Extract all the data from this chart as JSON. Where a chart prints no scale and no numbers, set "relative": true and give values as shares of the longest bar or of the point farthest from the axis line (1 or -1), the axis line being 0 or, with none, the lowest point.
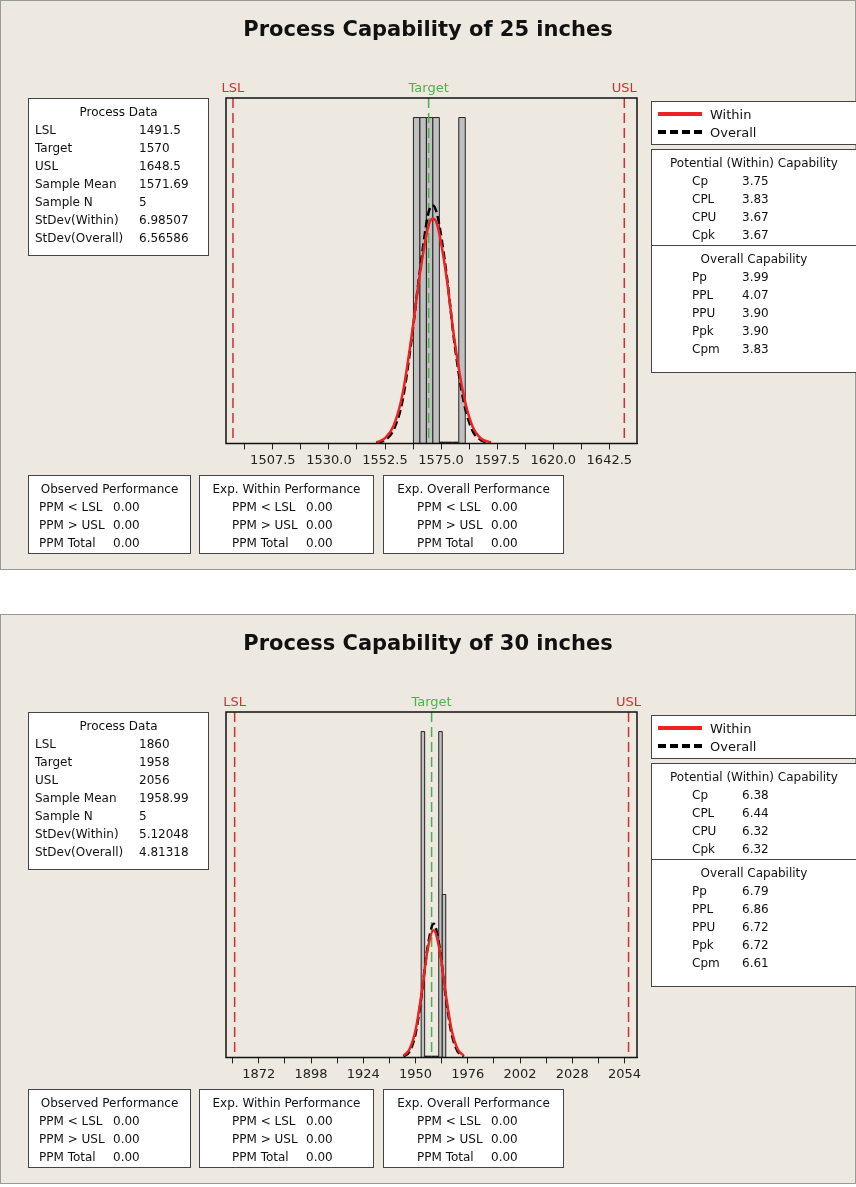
{
  "chart_data": [
    {
      "type": "histogram",
      "title": "Process Capability of 25 inches",
      "relative": true,
      "tick_labels": "x",
      "legend": "right",
      "color": "#c0c0c0",
      "bins": [
        1563.9,
        1566.5,
        1569.1,
        1571.7,
        1574.3,
        1576.9,
        1579.5,
        1582.1,
        1584.7
      ],
      "values": [
        1,
        1,
        1,
        1,
        0,
        0,
        0,
        1
      ],
      "xlim": [
        1488.7,
        1653.6
      ],
      "xticks": [
        {
          "value": 1496.25,
          "label": null
        },
        1507.5,
        {
          "value": 1518.75,
          "label": null
        },
        {
          "value": 1530,
          "label": "1530.0"
        },
        {
          "value": 1541.25,
          "label": null
        },
        1552.5,
        {
          "value": 1563.75,
          "label": null
        },
        {
          "value": 1575,
          "label": "1575.0"
        },
        {
          "value": 1586.25,
          "label": null
        },
        1597.5,
        {
          "value": 1608.75,
          "label": null
        },
        {
          "value": 1620,
          "label": "1620.0"
        },
        {
          "value": 1631.25,
          "label": null
        },
        1642.5
      ],
      "series": [
        {
          "name": "Within",
          "type": "line",
          "color": "#ee2222",
          "line_style": "solid",
          "x": [
            1549,
            1552.5,
            1556,
            1559.5,
            1563,
            1566.5,
            1570,
            1571.7,
            1573.5,
            1577,
            1580.5,
            1584,
            1587.5,
            1591,
            1595
          ],
          "values": [
            0.003,
            0.016,
            0.055,
            0.15,
            0.32,
            0.52,
            0.67,
            0.69,
            0.67,
            0.52,
            0.31,
            0.15,
            0.054,
            0.015,
            0.003
          ]
        },
        {
          "name": "Overall",
          "type": "line",
          "color": "#000000",
          "line_style": "dashed",
          "x": [
            1549,
            1552.5,
            1556,
            1559.5,
            1563,
            1566.5,
            1570,
            1571.7,
            1573.5,
            1577,
            1580.5,
            1584,
            1587.5,
            1591,
            1595
          ],
          "values": [
            0.002,
            0.01,
            0.042,
            0.13,
            0.31,
            0.53,
            0.71,
            0.73,
            0.7,
            0.53,
            0.3,
            0.13,
            0.04,
            0.01,
            0.001
          ]
        }
      ],
      "ref_lines": [
        {
          "axis": "x",
          "value": 1491.5,
          "label": "LSL",
          "color": "#d03030",
          "line_style": "dashed"
        },
        {
          "axis": "x",
          "value": 1570,
          "label": "Target",
          "color": "#4caf50",
          "line_style": "dashed"
        },
        {
          "axis": "x",
          "value": 1648.5,
          "label": "USL",
          "color": "#d03030",
          "line_style": "dashed"
        }
      ],
      "annotations": [
        "Process Data\nLSL\t1491.5\nTarget\t1570\nUSL\t1648.5\nSample Mean\t1571.69\nSample N\t5\nStDev(Within)\t6.98507\nStDev(Overall)\t6.56586",
        "Potential (Within) Capability\nCp\t3.75\nCPL\t3.83\nCPU\t3.67\nCpk\t3.67",
        "Overall Capability\nPp\t3.99\nPPL\t4.07\nPPU\t3.90\nPpk\t3.90\nCpm\t3.83",
        "Observed Performance\nPPM < LSL\t0.00\nPPM > USL\t0.00\nPPM Total\t0.00",
        "Exp. Within Performance\nPPM < LSL\t0.00\nPPM > USL\t0.00\nPPM Total\t0.00",
        "Exp. Overall Performance\nPPM < LSL\t0.00\nPPM > USL\t0.00\nPPM Total\t0.00"
      ]
    },
    {
      "type": "histogram",
      "title": "Process Capability of 30 inches",
      "relative": true,
      "tick_labels": "x",
      "legend": "right",
      "color": "#c0c0c0",
      "bins": [
        1952.8,
        1954.55,
        1956.3,
        1958.05,
        1959.8,
        1961.55,
        1963.3,
        1965.05
      ],
      "values": [
        1,
        0,
        0,
        0,
        0,
        1,
        0.5
      ],
      "xlim": [
        1855.7,
        2060.2
      ],
      "xticks": [
        {
          "value": 1859,
          "label": null
        },
        1872,
        {
          "value": 1885,
          "label": null
        },
        1898,
        {
          "value": 1911,
          "label": null
        },
        1924,
        {
          "value": 1937,
          "label": null
        },
        1950,
        {
          "value": 1963,
          "label": null
        },
        1976,
        {
          "value": 1989,
          "label": null
        },
        2002,
        {
          "value": 2015,
          "label": null
        },
        2028,
        {
          "value": 2041,
          "label": null
        },
        2054
      ],
      "series": [
        {
          "name": "Within",
          "type": "line",
          "color": "#ee2222",
          "line_style": "solid",
          "x": [
            1944,
            1947,
            1950,
            1953,
            1956,
            1959,
            1962,
            1965,
            1968,
            1971,
            1974
          ],
          "values": [
            0.005,
            0.025,
            0.083,
            0.196,
            0.33,
            0.39,
            0.328,
            0.196,
            0.083,
            0.025,
            0.005
          ]
        },
        {
          "name": "Overall",
          "type": "line",
          "color": "#000000",
          "line_style": "dashed",
          "x": [
            1944,
            1947,
            1950,
            1953,
            1956,
            1959,
            1962,
            1965,
            1968,
            1971,
            1974
          ],
          "values": [
            0.003,
            0.018,
            0.072,
            0.19,
            0.338,
            0.41,
            0.337,
            0.188,
            0.071,
            0.018,
            0.003
          ]
        }
      ],
      "ref_lines": [
        {
          "axis": "x",
          "value": 1860,
          "label": "LSL",
          "color": "#d03030",
          "line_style": "dashed"
        },
        {
          "axis": "x",
          "value": 1958,
          "label": "Target",
          "color": "#4caf50",
          "line_style": "dashed"
        },
        {
          "axis": "x",
          "value": 2056,
          "label": "USL",
          "color": "#d03030",
          "line_style": "dashed"
        }
      ],
      "annotations": [
        "Process Data\nLSL\t1860\nTarget\t1958\nUSL\t2056\nSample Mean\t1958.99\nSample N\t5\nStDev(Within)\t5.12048\nStDev(Overall)\t4.81318",
        "Potential (Within) Capability\nCp\t6.38\nCPL\t6.44\nCPU\t6.32\nCpk\t6.32",
        "Overall Capability\nPp\t6.79\nPPL\t6.86\nPPU\t6.72\nPpk\t6.72\nCpm\t6.61",
        "Observed Performance\nPPM < LSL\t0.00\nPPM > USL\t0.00\nPPM Total\t0.00",
        "Exp. Within Performance\nPPM < LSL\t0.00\nPPM > USL\t0.00\nPPM Total\t0.00",
        "Exp. Overall Performance\nPPM < LSL\t0.00\nPPM > USL\t0.00\nPPM Total\t0.00"
      ]
    }
  ]
}
